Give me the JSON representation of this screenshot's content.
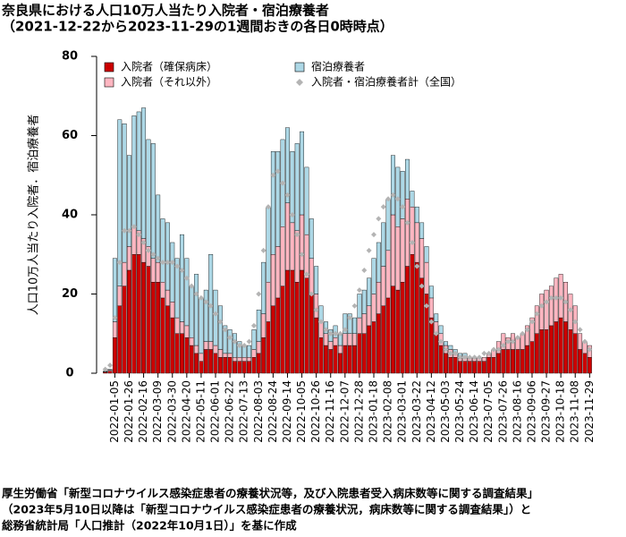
{
  "chart_data": {
    "type": "bar",
    "title": "奈良県における人口10万人当たり入院者・宿泊療養者",
    "subtitle": "（2021-12-22から2023-11-29の1週間おきの各日0時時点）",
    "ylabel": "人口10万人当たり入院者．宿泊療養者",
    "notes": [
      "厚生労働省「新型コロナウイルス感染症患者の療養状況等，及び入院患者受入病床数等に関する調査結果」",
      "（2023年5月10日以降は「新型コロナウイルス感染症患者の療養状況，病床数等に関する調査結果」）と",
      "総務省統計局「人口推計（2022年10月1日）」を基に作成"
    ],
    "stacked": true,
    "ylim": [
      0,
      80
    ],
    "yticks": [
      0,
      20,
      40,
      60,
      80
    ],
    "categories": [
      null,
      null,
      "2022-01-05",
      null,
      null,
      "2022-01-26",
      null,
      null,
      "2022-02-16",
      null,
      null,
      "2022-03-09",
      null,
      null,
      "2022-03-30",
      null,
      null,
      "2022-04-20",
      null,
      null,
      "2022-05-11",
      null,
      null,
      "2022-06-01",
      null,
      null,
      "2022-06-22",
      null,
      null,
      "2022-07-13",
      null,
      null,
      "2022-08-03",
      null,
      null,
      "2022-08-24",
      null,
      null,
      "2022-09-14",
      null,
      null,
      "2022-10-05",
      null,
      null,
      "2022-10-26",
      null,
      null,
      "2022-11-16",
      null,
      null,
      "2022-12-07",
      null,
      null,
      "2022-12-28",
      null,
      null,
      "2023-01-18",
      null,
      null,
      "2023-02-08",
      null,
      null,
      "2023-03-01",
      null,
      null,
      "2023-03-22",
      null,
      null,
      "2023-04-12",
      null,
      null,
      "2023-05-03",
      null,
      null,
      "2023-05-24",
      null,
      null,
      "2023-06-14",
      null,
      null,
      "2023-07-05",
      null,
      null,
      "2023-07-26",
      null,
      null,
      "2023-08-16",
      null,
      null,
      "2023-09-06",
      null,
      null,
      "2023-09-27",
      null,
      null,
      "2023-10-18",
      null,
      null,
      "2023-11-08",
      null,
      null,
      "2023-11-29"
    ],
    "series": [
      {
        "name": "入院者（確保病床）",
        "color": "#cc0000",
        "values": [
          0.3,
          0.5,
          9,
          17,
          22,
          26,
          30,
          30,
          28,
          27,
          23,
          23,
          19,
          17,
          14,
          10,
          10,
          9,
          7,
          5,
          3,
          6,
          6,
          5,
          4,
          4,
          4,
          3,
          3,
          3,
          3,
          4,
          5,
          9,
          13,
          17,
          19,
          22,
          26,
          26,
          23,
          26,
          24,
          20,
          14,
          9,
          7,
          6,
          7,
          5,
          7,
          7,
          7,
          10,
          10,
          12,
          13,
          15,
          17,
          19,
          22,
          21,
          23,
          27,
          30,
          28,
          24,
          20,
          14,
          10,
          7,
          5,
          4,
          4,
          3,
          3,
          3,
          3,
          3,
          3,
          4,
          4,
          5,
          6,
          6,
          6,
          6,
          6,
          7,
          8,
          10,
          11,
          11,
          12,
          13,
          14,
          13,
          11,
          10,
          6,
          5,
          4
        ]
      },
      {
        "name": "入院者（それ以外）",
        "color": "#ffb6c1",
        "values": [
          0.1,
          0.3,
          4,
          5,
          6,
          6,
          7,
          6,
          6,
          5,
          6,
          5,
          4,
          4,
          4,
          4,
          3,
          3,
          2,
          2,
          2,
          2,
          2,
          2,
          2,
          1,
          1,
          1,
          1,
          1,
          1,
          2,
          3,
          6,
          10,
          13,
          13,
          15,
          17,
          12,
          13,
          14,
          11,
          9,
          6,
          4,
          3,
          2,
          2,
          2,
          3,
          3,
          3,
          4,
          5,
          5,
          7,
          8,
          10,
          12,
          18,
          16,
          16,
          17,
          12,
          10,
          10,
          8,
          5,
          3,
          3,
          2,
          2,
          1,
          1,
          1,
          1,
          1,
          1,
          1,
          1,
          2,
          3,
          4,
          3,
          4,
          3,
          4,
          5,
          6,
          7,
          9,
          10,
          10,
          11,
          11,
          10,
          9,
          7,
          4,
          3,
          3
        ]
      },
      {
        "name": "宿泊療養者",
        "color": "#add8e6",
        "values": [
          0.1,
          0.2,
          16,
          42,
          35,
          23,
          28,
          30,
          33,
          27,
          29,
          17,
          16,
          17,
          15,
          15,
          22,
          17,
          13,
          18,
          14,
          13,
          22,
          14,
          11,
          7,
          6,
          6,
          4,
          3,
          3,
          5,
          8,
          13,
          19,
          26,
          24,
          22,
          19,
          18,
          22,
          21,
          17,
          10,
          7,
          4,
          3,
          3,
          3,
          3,
          5,
          5,
          4,
          6,
          6,
          7,
          9,
          10,
          11,
          13,
          15,
          15,
          12,
          10,
          4,
          4,
          4,
          4,
          3,
          2,
          2,
          1,
          1,
          1,
          1,
          1,
          0,
          0,
          0,
          0,
          0,
          0,
          0,
          0,
          0,
          0,
          0,
          0,
          0,
          0,
          0,
          0,
          0,
          0,
          0,
          0,
          0,
          0,
          0,
          0,
          0,
          0
        ]
      },
      {
        "name": "入院者・宿泊療養者計（全国）",
        "color": "#b4b4b4",
        "type": "scatter",
        "values": [
          1,
          2,
          14,
          28,
          36,
          36,
          37,
          35,
          33,
          31,
          30,
          29,
          28,
          28,
          28,
          27,
          26,
          24,
          22,
          20,
          19,
          18,
          17,
          15,
          13,
          11,
          9,
          8,
          7,
          7,
          8,
          12,
          20,
          31,
          42,
          50,
          51,
          48,
          45,
          40,
          35,
          30,
          25,
          20,
          16,
          13,
          11,
          10,
          10,
          10,
          11,
          14,
          17,
          21,
          26,
          31,
          35,
          39,
          42,
          44,
          45,
          44,
          42,
          38,
          33,
          27,
          22,
          17,
          13,
          10,
          8,
          6,
          5,
          5,
          4,
          4,
          4,
          4,
          4,
          5,
          5,
          6,
          6,
          7,
          8,
          8,
          9,
          10,
          11,
          13,
          15,
          17,
          18,
          19,
          19,
          19,
          18,
          16,
          13,
          11,
          8,
          6
        ]
      }
    ]
  }
}
